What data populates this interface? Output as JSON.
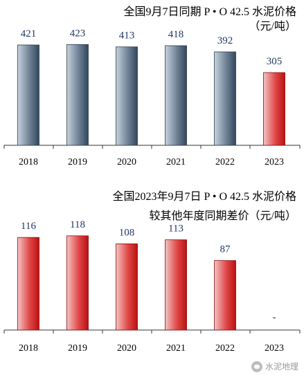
{
  "chart_data": [
    {
      "type": "bar",
      "title": "全国9月7日同期 P • O 42.5 水泥价格",
      "subtitle": "（元/吨）",
      "categories": [
        "2018",
        "2019",
        "2020",
        "2021",
        "2022",
        "2023"
      ],
      "values": [
        421,
        423,
        413,
        418,
        392,
        305
      ],
      "value_labels": [
        "421",
        "423",
        "413",
        "418",
        "392",
        "305"
      ],
      "ylim": [
        0,
        450
      ],
      "grid": false,
      "colors": {
        "main": [
          "#c7d2de",
          "#6f8296",
          "#33475c"
        ],
        "highlight": [
          "#f4c4c4",
          "#e04848",
          "#bb1111"
        ],
        "label": "#1f3864"
      },
      "highlight_index": 5
    },
    {
      "type": "bar",
      "title": "全国2023年9月7日 P • O 42.5 水泥价格",
      "subtitle": "较其他年度同期差价（元/吨）",
      "categories": [
        "2018",
        "2019",
        "2020",
        "2021",
        "2022",
        "2023"
      ],
      "values": [
        116,
        118,
        108,
        113,
        87,
        null
      ],
      "value_labels": [
        "116",
        "118",
        "108",
        "113",
        "87",
        "-"
      ],
      "ylim": [
        0,
        130
      ],
      "grid": false,
      "colors": {
        "main": [
          "#f4c4c4",
          "#e04848",
          "#bb1111"
        ],
        "label": "#1f3864"
      }
    }
  ],
  "watermark": {
    "text": "水泥地理",
    "icon": "wechat-icon"
  }
}
